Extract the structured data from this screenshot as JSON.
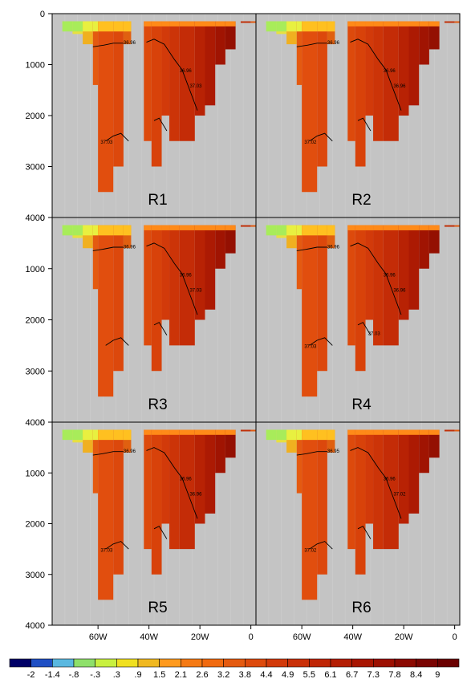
{
  "chart_data": {
    "type": "heatmap",
    "layout": "3 rows x 2 columns panel grid",
    "y_axis": {
      "ticks": [
        0,
        1000,
        2000,
        3000,
        4000
      ],
      "ylim": [
        4000,
        0
      ]
    },
    "x_axis": {
      "ticks": [
        "60W",
        "40W",
        "20W",
        "0"
      ],
      "xlim": [
        -78,
        2
      ]
    },
    "panels": [
      "R1",
      "R2",
      "R3",
      "R4",
      "R5",
      "R6"
    ],
    "colorbar": {
      "labels": [
        "-2",
        "-1.4",
        "-.8",
        "-.3",
        ".3",
        ".9",
        "1.5",
        "2.1",
        "2.6",
        "3.2",
        "3.8",
        "4.4",
        "4.9",
        "5.5",
        "6.1",
        "6.7",
        "7.3",
        "7.8",
        "8.4",
        "9"
      ],
      "colors": [
        "#000066",
        "#1f4fc4",
        "#5ab8e0",
        "#8ee06a",
        "#c8f040",
        "#f0e020",
        "#f0b820",
        "#ff9a1e",
        "#f57a14",
        "#f06a10",
        "#e45a10",
        "#dd4a0c",
        "#d23a0a",
        "#c93008",
        "#bf2606",
        "#b41e04",
        "#a81602",
        "#9c1002",
        "#8c0a02",
        "#7a0402"
      ],
      "range": [
        -2,
        9
      ]
    },
    "contours": [
      {
        "panel": "R1",
        "labels": [
          "36.96",
          "36.96",
          "37.03",
          "37.03"
        ]
      },
      {
        "panel": "R2",
        "labels": [
          "36.96",
          "36.96",
          "36.96",
          "37.02"
        ]
      },
      {
        "panel": "R3",
        "labels": [
          "36.96",
          "36.96",
          "37.03"
        ]
      },
      {
        "panel": "R4",
        "labels": [
          "36.96",
          "36.96",
          "36.96",
          "37.03",
          "37.03"
        ]
      },
      {
        "panel": "R5",
        "labels": [
          "36.96",
          "36.96",
          "36.96",
          "37.03"
        ]
      },
      {
        "panel": "R6",
        "labels": [
          "36.95",
          "36.96",
          "37.02",
          "37.02"
        ]
      }
    ]
  }
}
